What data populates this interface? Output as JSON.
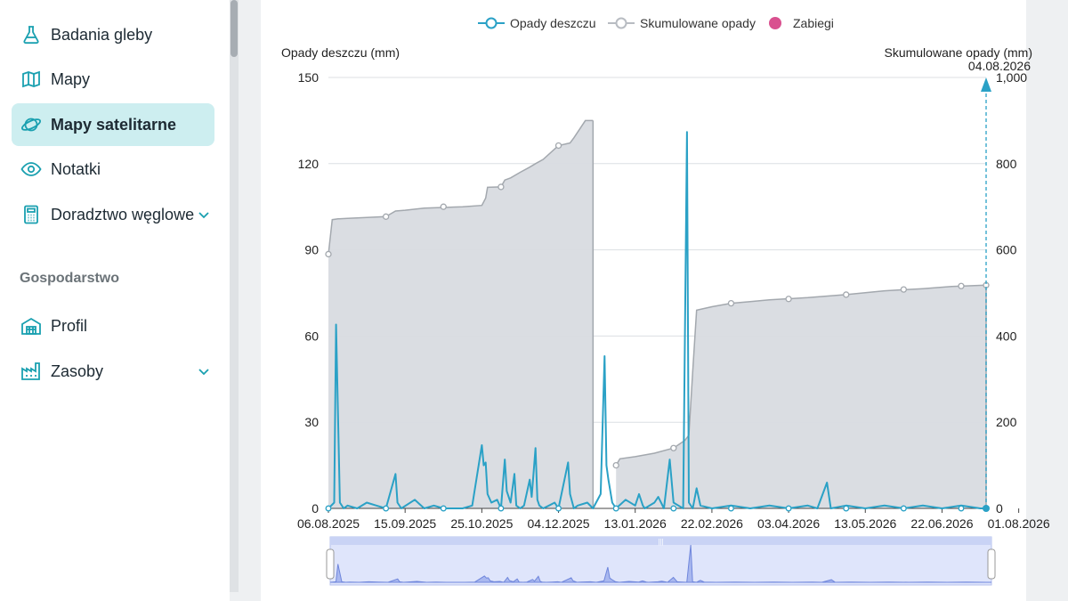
{
  "sidebar": {
    "items": [
      {
        "label": "Badania gleby",
        "icon": "flask-icon",
        "active": false
      },
      {
        "label": "Mapy",
        "icon": "map-icon",
        "active": false
      },
      {
        "label": "Mapy satelitarne",
        "icon": "planet-icon",
        "active": true
      },
      {
        "label": "Notatki",
        "icon": "eye-icon",
        "active": false
      },
      {
        "label": "Doradztwo węglowe",
        "icon": "calculator-icon",
        "active": false,
        "expandable": true
      }
    ],
    "section_title": "Gospodarstwo",
    "section_items": [
      {
        "label": "Profil",
        "icon": "barn-icon"
      },
      {
        "label": "Zasoby",
        "icon": "factory-icon",
        "expandable": true
      }
    ]
  },
  "legend": [
    {
      "label": "Opady deszczu",
      "color": "#2aa1c6"
    },
    {
      "label": "Skumulowane opady",
      "color": "#b8bcc2"
    },
    {
      "label": "Zabiegi",
      "color": "#d9508f"
    }
  ],
  "chart_data": {
    "type": "line",
    "ylabel_left": "Opady deszczu (mm)",
    "ylabel_right": "Skumulowane opady (mm)",
    "right_marker_label": "04.08.2026",
    "ylim_left": [
      0,
      150
    ],
    "ylim_right": [
      0,
      1000
    ],
    "yticks_left": [
      "0",
      "30",
      "60",
      "90",
      "120",
      "150"
    ],
    "yticks_right": [
      "0",
      "200",
      "400",
      "600",
      "800",
      "1,000"
    ],
    "x_tick_labels": [
      "06.08.2025",
      "15.09.2025",
      "25.10.2025",
      "04.12.2025",
      "13.01.2026",
      "22.02.2026",
      "03.04.2026",
      "13.05.2026",
      "22.06.2026",
      "01.08.2026"
    ],
    "rain_series": {
      "name": "Opady deszczu",
      "color": "#2aa1c6",
      "points": [
        [
          0,
          0
        ],
        [
          3,
          2
        ],
        [
          4,
          64
        ],
        [
          6,
          2
        ],
        [
          8,
          0
        ],
        [
          10,
          1
        ],
        [
          15,
          0
        ],
        [
          20,
          2
        ],
        [
          25,
          1
        ],
        [
          30,
          0
        ],
        [
          35,
          12
        ],
        [
          36,
          2
        ],
        [
          38,
          0
        ],
        [
          45,
          3
        ],
        [
          50,
          0
        ],
        [
          55,
          1
        ],
        [
          60,
          0
        ],
        [
          65,
          0
        ],
        [
          70,
          0
        ],
        [
          75,
          1
        ],
        [
          80,
          22
        ],
        [
          81,
          15
        ],
        [
          82,
          16
        ],
        [
          83,
          5
        ],
        [
          85,
          2
        ],
        [
          88,
          3
        ],
        [
          90,
          0
        ],
        [
          92,
          17
        ],
        [
          93,
          6
        ],
        [
          95,
          2
        ],
        [
          97,
          12
        ],
        [
          98,
          1
        ],
        [
          100,
          0
        ],
        [
          102,
          1
        ],
        [
          105,
          10
        ],
        [
          106,
          4
        ],
        [
          108,
          21
        ],
        [
          109,
          3
        ],
        [
          110,
          1
        ],
        [
          112,
          0
        ],
        [
          115,
          1
        ],
        [
          118,
          2
        ],
        [
          120,
          0
        ],
        [
          125,
          16
        ],
        [
          126,
          5
        ],
        [
          128,
          0
        ],
        [
          130,
          1
        ],
        [
          135,
          2
        ],
        [
          138,
          0
        ],
        [
          142,
          5
        ],
        [
          144,
          53
        ],
        [
          145,
          15
        ],
        [
          146,
          10
        ],
        [
          148,
          2
        ],
        [
          150,
          0
        ],
        [
          155,
          3
        ],
        [
          160,
          1
        ],
        [
          162,
          5
        ],
        [
          164,
          1
        ],
        [
          165,
          0
        ],
        [
          170,
          2
        ],
        [
          172,
          4
        ],
        [
          175,
          0
        ],
        [
          178,
          17
        ],
        [
          180,
          2
        ],
        [
          185,
          0
        ],
        [
          187,
          131
        ],
        [
          188,
          2
        ],
        [
          190,
          0
        ],
        [
          192,
          7
        ],
        [
          194,
          1
        ],
        [
          200,
          0
        ],
        [
          210,
          1
        ],
        [
          220,
          0
        ],
        [
          230,
          1
        ],
        [
          240,
          0
        ],
        [
          250,
          1
        ],
        [
          255,
          0
        ],
        [
          260,
          9
        ],
        [
          262,
          0
        ],
        [
          270,
          1
        ],
        [
          280,
          0
        ],
        [
          290,
          1
        ],
        [
          300,
          0
        ],
        [
          310,
          1
        ],
        [
          320,
          0
        ],
        [
          330,
          1
        ],
        [
          340,
          0
        ],
        [
          343,
          0
        ]
      ]
    },
    "cumulative_series": {
      "name": "Skumulowane opady",
      "color": "#a3a8ae",
      "segments": [
        [
          [
            0,
            590
          ],
          [
            2,
            670
          ],
          [
            5,
            672
          ],
          [
            10,
            673
          ],
          [
            20,
            675
          ],
          [
            30,
            677
          ],
          [
            35,
            690
          ],
          [
            40,
            692
          ],
          [
            50,
            697
          ],
          [
            70,
            700
          ],
          [
            80,
            703
          ],
          [
            80,
            703
          ],
          [
            82,
            720
          ],
          [
            83,
            745
          ],
          [
            90,
            746
          ],
          [
            92,
            762
          ],
          [
            95,
            767
          ],
          [
            100,
            780
          ],
          [
            105,
            792
          ],
          [
            108,
            800
          ],
          [
            112,
            810
          ],
          [
            120,
            842
          ],
          [
            126,
            848
          ],
          [
            128,
            860
          ],
          [
            134,
            900
          ],
          [
            138,
            900
          ]
        ],
        [
          [
            150,
            100
          ],
          [
            152,
            115
          ],
          [
            160,
            120
          ],
          [
            170,
            128
          ],
          [
            180,
            140
          ],
          [
            186,
            158
          ],
          [
            188,
            170
          ],
          [
            190,
            320
          ],
          [
            192,
            460
          ],
          [
            200,
            468
          ],
          [
            210,
            476
          ],
          [
            220,
            480
          ],
          [
            230,
            484
          ],
          [
            250,
            489
          ],
          [
            270,
            496
          ],
          [
            290,
            505
          ],
          [
            310,
            510
          ],
          [
            325,
            515
          ],
          [
            343,
            518
          ]
        ]
      ]
    }
  }
}
